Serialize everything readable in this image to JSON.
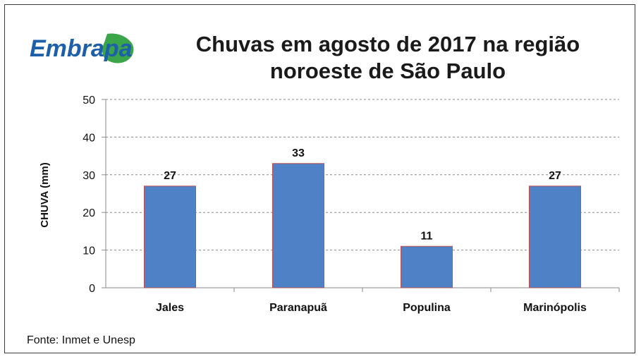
{
  "logo": {
    "text": "Embrapa",
    "color": "#1d5fa8",
    "leaf_color": "#3aa54a"
  },
  "title_line1": "Chuvas em agosto de 2017 na região",
  "title_line2": "noroeste de São Paulo",
  "source": "Fonte: Inmet e Unesp",
  "chart_data": {
    "type": "bar",
    "title": "Chuvas em agosto de 2017 na região noroeste de São Paulo",
    "xlabel": "",
    "ylabel": "CHUVA (mm)",
    "categories": [
      "Jales",
      "Paranapuã",
      "Populina",
      "Marinópolis"
    ],
    "values": [
      27,
      33,
      11,
      27
    ],
    "ylim": [
      0,
      50
    ],
    "yticks": [
      0,
      10,
      20,
      30,
      40,
      50
    ],
    "grid": true,
    "legend": "none",
    "bar_color": "#4f81c7",
    "bar_edge_color": "#c0504d"
  }
}
